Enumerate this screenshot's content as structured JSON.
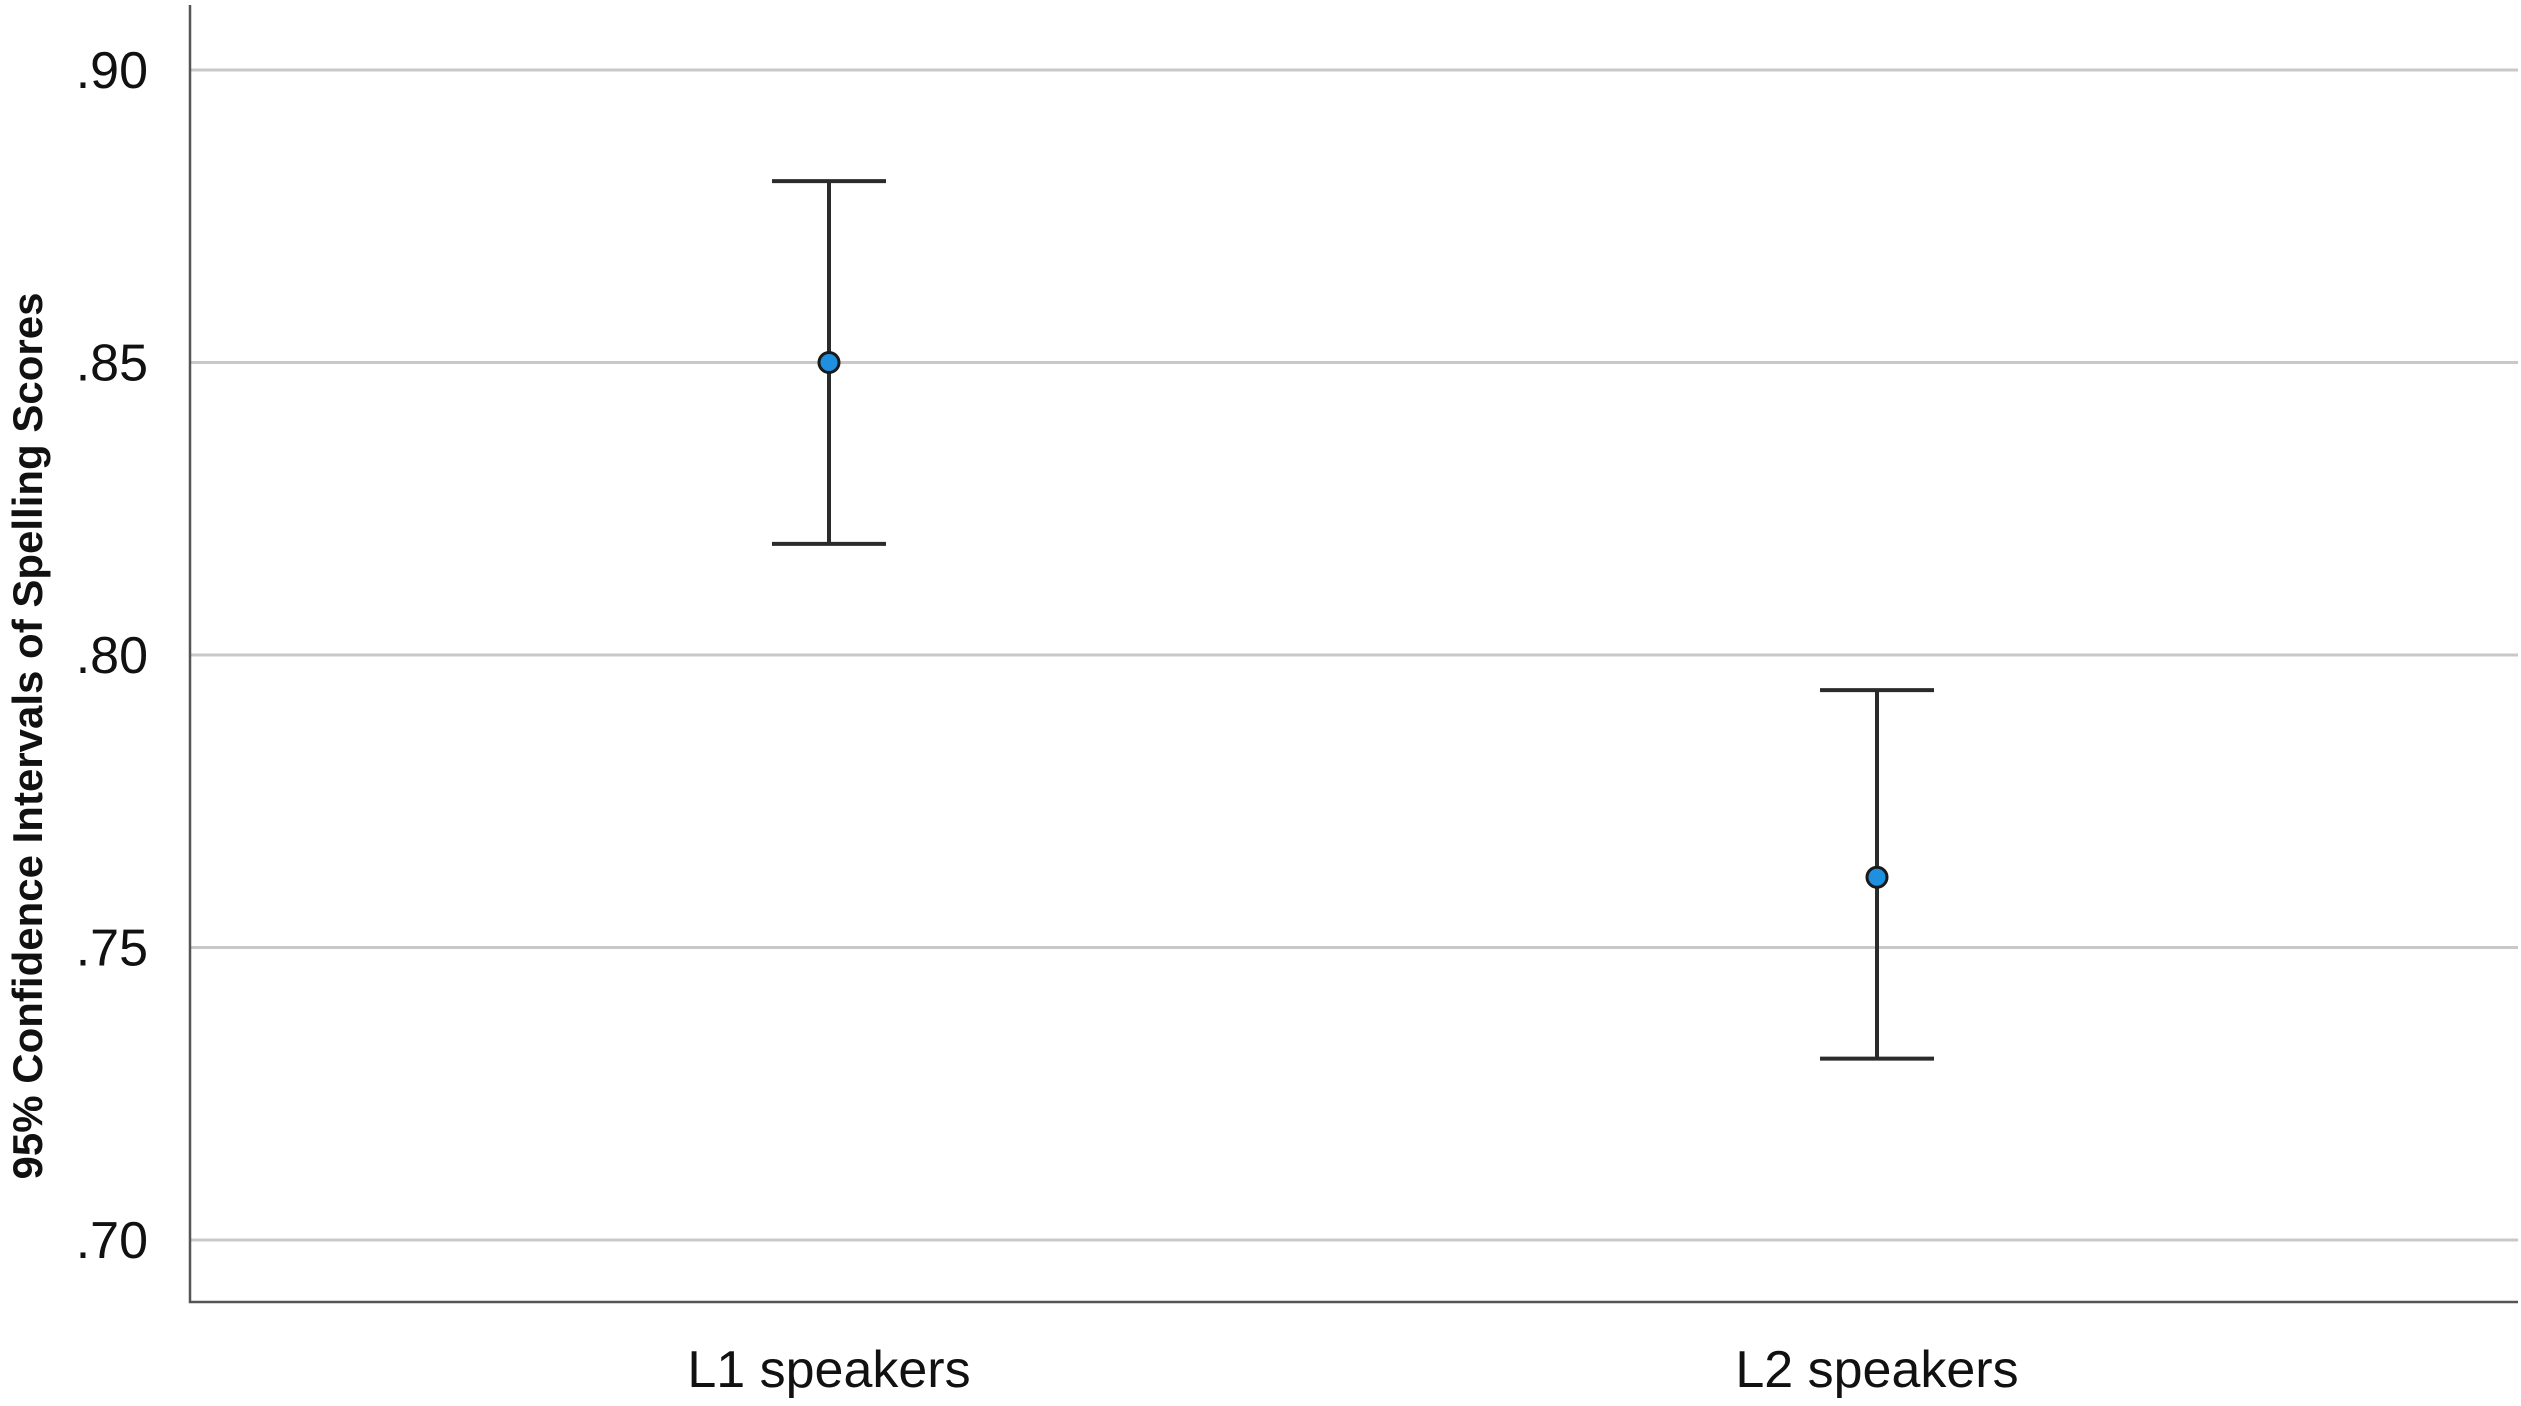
{
  "chart_data": {
    "type": "errorbar",
    "categories": [
      "L1 speakers",
      "L2 speakers"
    ],
    "series": [
      {
        "means": [
          0.85,
          0.762
        ],
        "lower": [
          0.819,
          0.731
        ],
        "upper": [
          0.881,
          0.794
        ]
      }
    ],
    "title": "",
    "xlabel": "",
    "ylabel": "95% Confidence Intervals of Spelling Scores",
    "ylim": [
      0.69,
      0.912
    ],
    "yticks": [
      0.7,
      0.75,
      0.8,
      0.85,
      0.9
    ],
    "ytick_labels": [
      ".70",
      ".75",
      ".80",
      ".85",
      ".90"
    ],
    "grid": true,
    "colors": {
      "marker_fill": "#1f8fe0",
      "error_bar": "#2b2b2b",
      "gridline": "#c8c8c8"
    }
  }
}
